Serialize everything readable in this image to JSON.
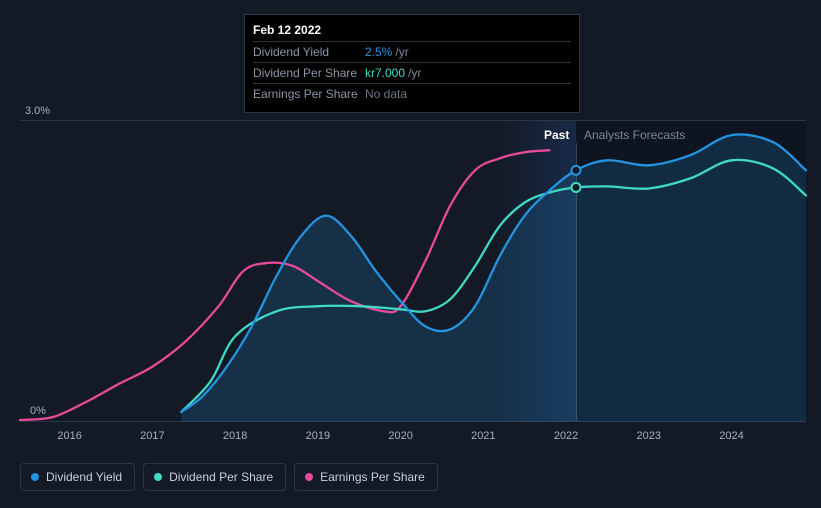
{
  "chart": {
    "type": "line",
    "background_color": "#131a26",
    "grid_color": "#2c3642",
    "y_axis": {
      "max_label": "3.0%",
      "min_label": "0%",
      "ymin": 0,
      "ymax": 3.0
    },
    "x_axis": {
      "ticks": [
        2016,
        2017,
        2018,
        2019,
        2020,
        2021,
        2022,
        2023,
        2024
      ],
      "xmin": 2015.4,
      "xmax": 2024.9
    },
    "today_x": 2022.12,
    "region_labels": {
      "past": "Past",
      "forecasts": "Analysts Forecasts"
    },
    "series": {
      "dividend_yield": {
        "label": "Dividend Yield",
        "color": "#2394df",
        "area_fill": "rgba(35,148,223,0.18)",
        "stroke_width": 2.3,
        "x": [
          2017.35,
          2017.6,
          2017.9,
          2018.2,
          2018.5,
          2018.8,
          2019.1,
          2019.4,
          2019.7,
          2020.0,
          2020.3,
          2020.6,
          2020.9,
          2021.2,
          2021.5,
          2021.8,
          2022.12,
          2022.5,
          2023.0,
          2023.5,
          2024.0,
          2024.5,
          2024.9
        ],
        "y": [
          0.1,
          0.25,
          0.55,
          0.95,
          1.45,
          1.85,
          2.05,
          1.85,
          1.5,
          1.2,
          0.95,
          0.92,
          1.15,
          1.65,
          2.05,
          2.3,
          2.5,
          2.6,
          2.55,
          2.65,
          2.85,
          2.78,
          2.5
        ]
      },
      "dividend_per_share": {
        "label": "Dividend Per Share",
        "color": "#41d9c5",
        "stroke_width": 2.3,
        "x": [
          2017.35,
          2017.7,
          2018.0,
          2018.5,
          2019.0,
          2019.5,
          2020.0,
          2020.3,
          2020.6,
          2020.9,
          2021.2,
          2021.5,
          2021.8,
          2022.12,
          2022.5,
          2023.0,
          2023.5,
          2024.0,
          2024.5,
          2024.9
        ],
        "y": [
          0.1,
          0.4,
          0.85,
          1.1,
          1.15,
          1.15,
          1.12,
          1.1,
          1.22,
          1.55,
          1.95,
          2.18,
          2.28,
          2.33,
          2.34,
          2.32,
          2.42,
          2.6,
          2.52,
          2.25
        ]
      },
      "earnings_per_share": {
        "label": "Earnings Per Share",
        "color": "#e84a9a",
        "stroke_width": 2.3,
        "x": [
          2015.4,
          2015.8,
          2016.2,
          2016.6,
          2017.0,
          2017.4,
          2017.8,
          2018.1,
          2018.4,
          2018.7,
          2019.0,
          2019.4,
          2019.8,
          2020.0,
          2020.3,
          2020.6,
          2020.9,
          2021.2,
          2021.5,
          2021.8
        ],
        "y": [
          0.02,
          0.05,
          0.2,
          0.38,
          0.55,
          0.8,
          1.15,
          1.5,
          1.58,
          1.55,
          1.4,
          1.2,
          1.1,
          1.15,
          1.6,
          2.15,
          2.5,
          2.62,
          2.68,
          2.7
        ]
      }
    },
    "markers": [
      {
        "series": "dividend_yield",
        "x": 2022.12,
        "y": 2.5
      },
      {
        "series": "dividend_per_share",
        "x": 2022.12,
        "y": 2.33
      }
    ]
  },
  "tooltip": {
    "date": "Feb 12 2022",
    "rows": [
      {
        "label": "Dividend Yield",
        "value": "2.5%",
        "suffix": "/yr",
        "value_color": "#2394df"
      },
      {
        "label": "Dividend Per Share",
        "value": "kr7.000",
        "suffix": "/yr",
        "value_color": "#41d9c5"
      },
      {
        "label": "Earnings Per Share",
        "value": "No data",
        "suffix": "",
        "value_color": "#6b7786"
      }
    ]
  },
  "legend": [
    {
      "label": "Dividend Yield",
      "color": "#2394df"
    },
    {
      "label": "Dividend Per Share",
      "color": "#41d9c5"
    },
    {
      "label": "Earnings Per Share",
      "color": "#e84a9a"
    }
  ]
}
